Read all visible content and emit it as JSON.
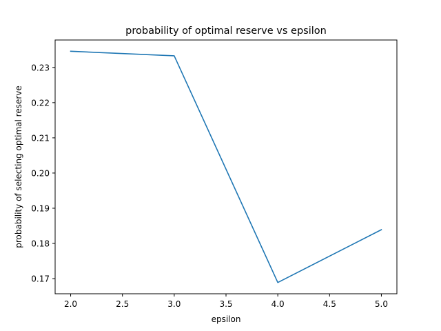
{
  "chart_data": {
    "type": "line",
    "title": "probability of optimal reserve vs epsilon",
    "xlabel": "epsilon",
    "ylabel": "probability of selecting optimal reserve",
    "xlim": [
      1.85,
      5.15
    ],
    "ylim": [
      0.1657,
      0.2378
    ],
    "xticks": [
      2.0,
      2.5,
      3.0,
      3.5,
      4.0,
      4.5,
      5.0
    ],
    "xtick_labels": [
      "2.0",
      "2.5",
      "3.0",
      "3.5",
      "4.0",
      "4.5",
      "5.0"
    ],
    "yticks": [
      0.17,
      0.18,
      0.19,
      0.2,
      0.21,
      0.22,
      0.23
    ],
    "ytick_labels": [
      "0.17",
      "0.18",
      "0.19",
      "0.20",
      "0.21",
      "0.22",
      "0.23"
    ],
    "grid": false,
    "series": [
      {
        "color": "#1f77b4",
        "x": [
          2.0,
          3.0,
          4.0,
          5.0
        ],
        "y": [
          0.2346,
          0.2333,
          0.1689,
          0.1839
        ]
      }
    ]
  }
}
